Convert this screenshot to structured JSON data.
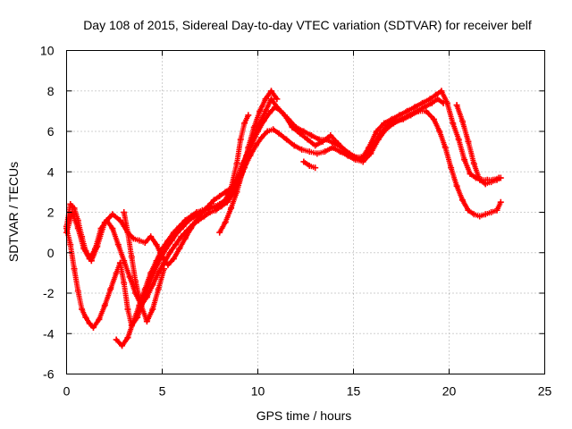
{
  "chart_data": {
    "type": "scatter",
    "title": "Day 108 of 2015, Sidereal Day-to-day VTEC variation (SDTVAR) for receiver belf",
    "xlabel": "GPS time / hours",
    "ylabel": "SDTVAR / TECUs",
    "xlim": [
      0,
      25
    ],
    "ylim": [
      -6,
      10
    ],
    "xticks": [
      0,
      5,
      10,
      15,
      20,
      25
    ],
    "yticks": [
      -6,
      -4,
      -2,
      0,
      2,
      4,
      6,
      8,
      10
    ],
    "grid": true,
    "marker": "plus",
    "color": "#ff0000",
    "series": [
      {
        "x": [
          0.0,
          0.2,
          0.4,
          0.6,
          0.8,
          1.0,
          1.3,
          1.6,
          2.0,
          2.4,
          2.8,
          3.2,
          3.5,
          3.8,
          4.1,
          4.4,
          4.7,
          5.0,
          5.3,
          5.6,
          5.9,
          6.2,
          6.5,
          6.8,
          7.1,
          7.4,
          7.7,
          8.0,
          8.3,
          8.6,
          8.9,
          9.2,
          9.5,
          9.8,
          10.1,
          10.4,
          10.7,
          11.0,
          11.4,
          11.8,
          12.2,
          12.6,
          13.0,
          13.4,
          13.8,
          14.2,
          14.6,
          15.0,
          15.4,
          15.8,
          16.2,
          16.6,
          17.0,
          17.4,
          17.8,
          18.2,
          18.6,
          19.0,
          19.3,
          19.6,
          19.9,
          20.2,
          20.5,
          20.8,
          21.1,
          21.4,
          21.7,
          22.0,
          22.3,
          22.6
        ],
        "y": [
          1.3,
          2.4,
          2.2,
          1.6,
          0.8,
          0.1,
          -0.4,
          0.3,
          1.5,
          1.9,
          1.6,
          1.0,
          0.7,
          0.6,
          0.5,
          0.8,
          0.4,
          -0.2,
          -0.6,
          -0.3,
          0.2,
          0.7,
          1.2,
          1.6,
          2.0,
          2.3,
          2.6,
          2.8,
          3.0,
          3.2,
          3.6,
          4.4,
          5.0,
          5.8,
          6.4,
          7.0,
          7.6,
          7.2,
          6.8,
          6.2,
          5.9,
          5.6,
          5.3,
          5.5,
          5.8,
          5.4,
          5.0,
          4.7,
          4.6,
          5.2,
          6.0,
          6.4,
          6.6,
          6.8,
          7.0,
          7.2,
          7.4,
          7.6,
          7.8,
          8.0,
          7.4,
          6.4,
          5.6,
          4.6,
          3.9,
          3.7,
          3.6,
          3.6,
          3.6,
          3.7
        ]
      },
      {
        "x": [
          0.0,
          0.2,
          0.4,
          0.6,
          0.8,
          1.0,
          1.2,
          1.4,
          1.7,
          2.0,
          2.3,
          2.6,
          2.8,
          3.0,
          3.2,
          3.4,
          3.7,
          4.0,
          4.3,
          4.6,
          4.9,
          5.2,
          5.5,
          5.8,
          6.1,
          6.4,
          6.7,
          7.0,
          7.3,
          7.6,
          7.9,
          8.2,
          8.5,
          8.8,
          9.1,
          9.4,
          9.7,
          10.0,
          10.3,
          10.6,
          10.9,
          11.2,
          11.6,
          12.0,
          12.4,
          12.8,
          13.2,
          13.6,
          14.0,
          14.4,
          14.8,
          15.2,
          15.6,
          16.0,
          16.4,
          16.8,
          17.2,
          17.6,
          18.0,
          18.4,
          18.8,
          19.2,
          19.5,
          19.8,
          20.1,
          20.4,
          20.7,
          21.0,
          21.3,
          21.6,
          21.9,
          22.2,
          22.5,
          22.7
        ],
        "y": [
          1.2,
          0.4,
          -0.8,
          -1.9,
          -2.8,
          -3.2,
          -3.5,
          -3.7,
          -3.3,
          -2.6,
          -1.8,
          -1.0,
          -0.5,
          -1.5,
          -2.8,
          -3.6,
          -3.2,
          -2.4,
          -1.6,
          -0.9,
          -0.3,
          0.2,
          0.6,
          1.0,
          1.3,
          1.6,
          1.8,
          2.0,
          2.1,
          2.2,
          2.3,
          2.5,
          2.8,
          3.3,
          4.0,
          4.8,
          5.4,
          6.0,
          6.5,
          6.9,
          7.2,
          7.0,
          6.6,
          6.2,
          6.0,
          5.8,
          5.6,
          5.6,
          5.4,
          5.2,
          4.9,
          4.7,
          4.8,
          5.3,
          5.9,
          6.3,
          6.5,
          6.6,
          6.8,
          7.0,
          7.0,
          6.6,
          6.0,
          5.2,
          4.2,
          3.3,
          2.6,
          2.1,
          1.9,
          1.8,
          1.9,
          2.0,
          2.1,
          2.5
        ]
      },
      {
        "x": [
          0.0,
          0.3,
          0.6,
          0.9,
          1.2,
          1.5,
          1.8,
          2.1,
          2.4,
          2.7,
          3.0,
          3.3,
          3.6,
          3.9,
          4.2,
          4.5,
          4.8,
          5.1,
          5.4,
          5.7,
          6.0,
          6.3,
          6.6,
          6.9,
          7.2,
          7.5,
          7.8,
          8.1,
          8.4,
          8.7,
          9.0,
          9.3,
          9.6,
          9.9,
          10.2,
          10.5,
          10.8,
          11.1,
          11.5,
          11.9,
          12.3,
          12.7,
          13.1,
          13.5,
          13.9,
          14.3,
          14.7,
          15.1,
          15.5,
          15.9,
          16.3,
          16.7,
          17.1,
          17.5,
          17.9,
          18.3,
          18.7,
          19.1,
          19.4,
          19.7
        ],
        "y": [
          1.0,
          2.0,
          1.2,
          0.2,
          -0.3,
          0.2,
          1.2,
          1.6,
          1.2,
          0.4,
          -0.4,
          -1.2,
          -2.0,
          -2.6,
          -2.2,
          -1.6,
          -1.0,
          -0.5,
          0.0,
          0.4,
          0.8,
          1.1,
          1.4,
          1.6,
          1.8,
          2.0,
          2.1,
          2.3,
          2.5,
          2.9,
          3.5,
          4.2,
          4.8,
          5.3,
          5.7,
          6.0,
          6.1,
          5.9,
          5.6,
          5.3,
          5.1,
          5.0,
          4.9,
          5.0,
          5.2,
          5.0,
          4.8,
          4.6,
          4.5,
          4.9,
          5.6,
          6.1,
          6.4,
          6.6,
          6.8,
          7.0,
          7.2,
          7.4,
          7.6,
          7.4
        ]
      },
      {
        "x": [
          2.6,
          2.9,
          3.2,
          3.5,
          3.8,
          4.1,
          4.4,
          4.7,
          5.0,
          5.3,
          5.6,
          5.9,
          6.2,
          6.5,
          6.8,
          7.1,
          7.4,
          7.7,
          8.0,
          8.3,
          8.6,
          8.9,
          9.1,
          9.3,
          9.5
        ],
        "y": [
          -4.3,
          -4.6,
          -4.2,
          -3.4,
          -2.6,
          -1.8,
          -1.0,
          -0.4,
          0.2,
          0.6,
          1.0,
          1.3,
          1.6,
          1.8,
          2.0,
          2.1,
          2.2,
          2.3,
          2.4,
          2.6,
          3.2,
          4.4,
          5.6,
          6.4,
          6.8
        ]
      },
      {
        "x": [
          3.0,
          3.2,
          3.4,
          3.6,
          3.9,
          4.2,
          4.5,
          4.8,
          5.1
        ],
        "y": [
          2.0,
          1.0,
          -0.2,
          -1.4,
          -2.6,
          -3.4,
          -2.8,
          -1.8,
          -0.8
        ]
      },
      {
        "x": [
          8.0,
          8.3,
          8.6,
          8.9,
          9.2,
          9.5,
          9.8,
          10.1,
          10.4,
          10.7,
          11.0
        ],
        "y": [
          1.0,
          1.5,
          2.2,
          3.0,
          4.0,
          5.2,
          6.2,
          7.0,
          7.6,
          8.0,
          7.6
        ]
      },
      {
        "x": [
          12.4,
          12.7,
          13.0
        ],
        "y": [
          4.5,
          4.3,
          4.2
        ]
      },
      {
        "x": [
          20.4,
          20.7,
          21.0,
          21.3,
          21.6,
          21.9,
          22.2,
          22.5,
          22.7
        ],
        "y": [
          7.3,
          6.5,
          5.5,
          4.4,
          3.6,
          3.4,
          3.5,
          3.6,
          3.7
        ]
      }
    ]
  }
}
